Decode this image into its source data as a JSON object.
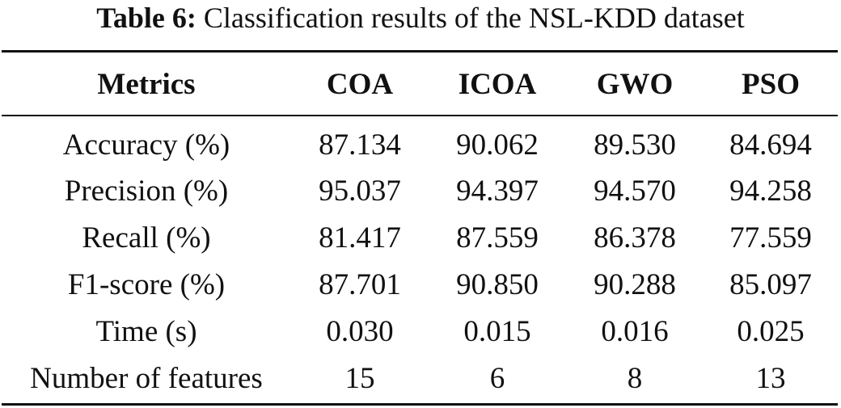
{
  "caption": {
    "label": "Table 6:",
    "text": "Classification results of the NSL-KDD dataset"
  },
  "table": {
    "headers": [
      "Metrics",
      "COA",
      "ICOA",
      "GWO",
      "PSO"
    ],
    "rows": [
      [
        "Accuracy (%)",
        "87.134",
        "90.062",
        "89.530",
        "84.694"
      ],
      [
        "Precision (%)",
        "95.037",
        "94.397",
        "94.570",
        "94.258"
      ],
      [
        "Recall (%)",
        "81.417",
        "87.559",
        "86.378",
        "77.559"
      ],
      [
        "F1-score (%)",
        "87.701",
        "90.850",
        "90.288",
        "85.097"
      ],
      [
        "Time (s)",
        "0.030",
        "0.015",
        "0.016",
        "0.025"
      ],
      [
        "Number of features",
        "15",
        "6",
        "8",
        "13"
      ]
    ]
  }
}
